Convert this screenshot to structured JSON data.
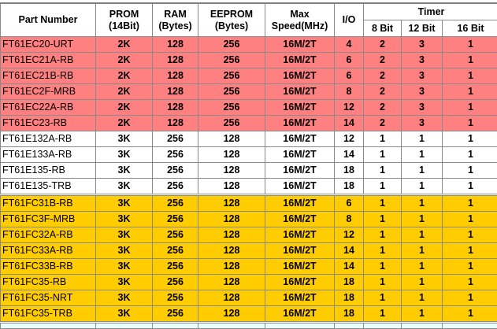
{
  "header": {
    "part_number": "Part Number",
    "prom": "PROM",
    "prom_unit": "(14Bit)",
    "ram": "RAM",
    "ram_unit": "(Bytes)",
    "eeprom": "EEPROM",
    "eeprom_unit": "(Bytes)",
    "max": "Max",
    "speed": "Speed(MHz)",
    "io": "I/O",
    "timer": "Timer",
    "timer_8": "8 Bit",
    "timer_12": "12 Bit",
    "timer_16": "16 Bit"
  },
  "colors": {
    "red": "#FF8080",
    "white": "#FFFFFF",
    "yellow": "#FFCC00"
  },
  "rows": [
    {
      "group": "red",
      "cells": [
        "FT61EC20-URT",
        "2K",
        "128",
        "256",
        "16M/2T",
        "4",
        "2",
        "3",
        "1"
      ]
    },
    {
      "group": "red",
      "cells": [
        "FT61EC21A-RB",
        "2K",
        "128",
        "256",
        "16M/2T",
        "6",
        "2",
        "3",
        "1"
      ]
    },
    {
      "group": "red",
      "cells": [
        "FT61EC21B-RB",
        "2K",
        "128",
        "256",
        "16M/2T",
        "6",
        "2",
        "3",
        "1"
      ]
    },
    {
      "group": "red",
      "cells": [
        "FT61EC2F-MRB",
        "2K",
        "128",
        "256",
        "16M/2T",
        "8",
        "2",
        "3",
        "1"
      ]
    },
    {
      "group": "red",
      "cells": [
        "FT61EC22A-RB",
        "2K",
        "128",
        "256",
        "16M/2T",
        "12",
        "2",
        "3",
        "1"
      ]
    },
    {
      "group": "red",
      "cells": [
        "FT61EC23-RB",
        "2K",
        "128",
        "256",
        "16M/2T",
        "14",
        "2",
        "3",
        "1"
      ]
    },
    {
      "group": "white",
      "cells": [
        "FT61E132A-RB",
        "3K",
        "256",
        "128",
        "16M/2T",
        "12",
        "1",
        "1",
        "1"
      ]
    },
    {
      "group": "white",
      "cells": [
        "FT61E133A-RB",
        "3K",
        "256",
        "128",
        "16M/2T",
        "14",
        "1",
        "1",
        "1"
      ]
    },
    {
      "group": "white",
      "cells": [
        "FT61E135-RB",
        "3K",
        "256",
        "128",
        "16M/2T",
        "18",
        "1",
        "1",
        "1"
      ]
    },
    {
      "group": "white",
      "cells": [
        "FT61E135-TRB",
        "3K",
        "256",
        "128",
        "16M/2T",
        "18",
        "1",
        "1",
        "1"
      ]
    },
    {
      "group": "yellow",
      "cells": [
        "FT61FC31B-RB",
        "3K",
        "256",
        "128",
        "16M/2T",
        "6",
        "1",
        "1",
        "1"
      ]
    },
    {
      "group": "yellow",
      "cells": [
        "FT61FC3F-MRB",
        "3K",
        "256",
        "128",
        "16M/2T",
        "8",
        "1",
        "1",
        "1"
      ]
    },
    {
      "group": "yellow",
      "cells": [
        "FT61FC32A-RB",
        "3K",
        "256",
        "128",
        "16M/2T",
        "12",
        "1",
        "1",
        "1"
      ]
    },
    {
      "group": "yellow",
      "cells": [
        "FT61FC33A-RB",
        "3K",
        "256",
        "128",
        "16M/2T",
        "14",
        "1",
        "1",
        "1"
      ]
    },
    {
      "group": "yellow",
      "cells": [
        "FT61FC33B-RB",
        "3K",
        "256",
        "128",
        "16M/2T",
        "14",
        "1",
        "1",
        "1"
      ]
    },
    {
      "group": "yellow",
      "cells": [
        "FT61FC35-RB",
        "3K",
        "256",
        "128",
        "16M/2T",
        "18",
        "1",
        "1",
        "1"
      ]
    },
    {
      "group": "yellow",
      "cells": [
        "FT61FC35-NRT",
        "3K",
        "256",
        "128",
        "16M/2T",
        "18",
        "1",
        "1",
        "1"
      ]
    },
    {
      "group": "yellow",
      "cells": [
        "FT61FC35-TRB",
        "3K",
        "256",
        "128",
        "16M/2T",
        "18",
        "1",
        "1",
        "1"
      ]
    }
  ]
}
